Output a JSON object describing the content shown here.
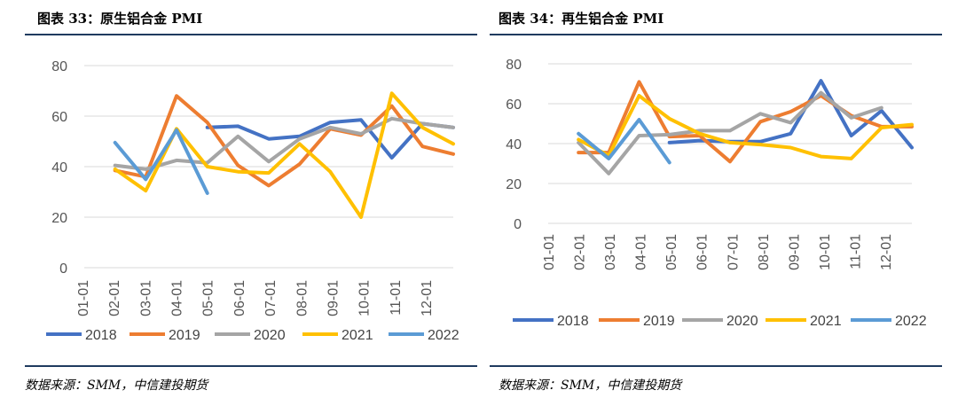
{
  "charts": [
    {
      "fig_title": "图表 33：原生铝合金 PMI",
      "source": "数据来源：SMM，中信建投期货"
    },
    {
      "fig_title": "图表 34：再生铝合金 PMI",
      "source": "数据来源：SMM，中信建投期货"
    }
  ],
  "chart_data": [
    {
      "type": "line",
      "title": "图表 33：原生铝合金 PMI",
      "xlabel": "",
      "ylabel": "",
      "categories": [
        "01-01",
        "02-01",
        "03-01",
        "04-01",
        "05-01",
        "06-01",
        "07-01",
        "08-01",
        "09-01",
        "10-01",
        "11-01",
        "12-01"
      ],
      "x_positions": [
        0,
        1,
        2,
        3,
        4,
        5,
        6,
        7,
        8,
        9,
        10,
        11,
        12
      ],
      "yticks": [
        0,
        20,
        40,
        60,
        80
      ],
      "ylim": [
        0,
        80
      ],
      "grid": true,
      "legend": "bottom",
      "series": [
        {
          "name": "2018",
          "color": "#4472c4",
          "points": [
            [
              4,
              55.5
            ],
            [
              5,
              56
            ],
            [
              6,
              51
            ],
            [
              7,
              52
            ],
            [
              8,
              57.5
            ],
            [
              9,
              58.5
            ],
            [
              10,
              43.5
            ],
            [
              11,
              57
            ],
            [
              12,
              55.5
            ]
          ]
        },
        {
          "name": "2019",
          "color": "#ed7d31",
          "points": [
            [
              1,
              38.5
            ],
            [
              2,
              36
            ],
            [
              3,
              68
            ],
            [
              4,
              57.5
            ],
            [
              5,
              40.5
            ],
            [
              6,
              32.5
            ],
            [
              7,
              41
            ],
            [
              8,
              55
            ],
            [
              9,
              52.5
            ],
            [
              10,
              64
            ],
            [
              11,
              48
            ],
            [
              12,
              45
            ]
          ]
        },
        {
          "name": "2020",
          "color": "#a5a5a5",
          "points": [
            [
              1,
              40.5
            ],
            [
              2,
              39
            ],
            [
              3,
              42.5
            ],
            [
              4,
              41.5
            ],
            [
              5,
              52
            ],
            [
              6,
              42
            ],
            [
              7,
              51
            ],
            [
              8,
              55.5
            ],
            [
              9,
              53
            ],
            [
              10,
              59
            ],
            [
              11,
              57
            ],
            [
              12,
              55.5
            ]
          ]
        },
        {
          "name": "2021",
          "color": "#ffc000",
          "points": [
            [
              1,
              39
            ],
            [
              2,
              30.5
            ],
            [
              3,
              55
            ],
            [
              4,
              40
            ],
            [
              5,
              38
            ],
            [
              6,
              37.5
            ],
            [
              7,
              49
            ],
            [
              8,
              38
            ],
            [
              9,
              20
            ],
            [
              10,
              69
            ],
            [
              11,
              55.5
            ],
            [
              12,
              49
            ]
          ]
        },
        {
          "name": "2022",
          "color": "#5b9bd5",
          "points": [
            [
              1,
              49.5
            ],
            [
              2,
              35
            ],
            [
              3,
              54.5
            ],
            [
              4,
              29.5
            ]
          ]
        }
      ]
    },
    {
      "type": "line",
      "title": "图表 34：再生铝合金 PMI",
      "xlabel": "",
      "ylabel": "",
      "categories": [
        "01-01",
        "02-01",
        "03-01",
        "04-01",
        "05-01",
        "06-01",
        "07-01",
        "08-01",
        "09-01",
        "10-01",
        "11-01",
        "12-01"
      ],
      "x_positions": [
        0,
        1,
        2,
        3,
        4,
        5,
        6,
        7,
        8,
        9,
        10,
        11,
        12
      ],
      "yticks": [
        0,
        20,
        40,
        60,
        80
      ],
      "ylim": [
        0,
        80
      ],
      "grid": true,
      "legend": "bottom",
      "series": [
        {
          "name": "2018",
          "color": "#4472c4",
          "points": [
            [
              4,
              40.5
            ],
            [
              5,
              41.5
            ],
            [
              6,
              41
            ],
            [
              7,
              41
            ],
            [
              8,
              45
            ],
            [
              9,
              71.5
            ],
            [
              10,
              44
            ],
            [
              11,
              56.5
            ],
            [
              12,
              38
            ]
          ]
        },
        {
          "name": "2019",
          "color": "#ed7d31",
          "points": [
            [
              1,
              35.5
            ],
            [
              2,
              35.5
            ],
            [
              3,
              71
            ],
            [
              4,
              43.5
            ],
            [
              5,
              44
            ],
            [
              6,
              31
            ],
            [
              7,
              51
            ],
            [
              8,
              56
            ],
            [
              9,
              64
            ],
            [
              10,
              54
            ],
            [
              11,
              48.5
            ],
            [
              12,
              48.5
            ]
          ]
        },
        {
          "name": "2020",
          "color": "#a5a5a5",
          "points": [
            [
              1,
              40.5
            ],
            [
              2,
              25
            ],
            [
              3,
              44
            ],
            [
              4,
              44.5
            ],
            [
              5,
              46.5
            ],
            [
              6,
              46.5
            ],
            [
              7,
              55
            ],
            [
              8,
              50.5
            ],
            [
              9,
              65.5
            ],
            [
              10,
              53
            ],
            [
              11,
              58
            ],
            [
              12,
              null
            ]
          ]
        },
        {
          "name": "2021",
          "color": "#ffc000",
          "points": [
            [
              1,
              42
            ],
            [
              2,
              34
            ],
            [
              3,
              64
            ],
            [
              4,
              52.5
            ],
            [
              5,
              45
            ],
            [
              6,
              40.5
            ],
            [
              7,
              39.5
            ],
            [
              8,
              38
            ],
            [
              9,
              33.5
            ],
            [
              10,
              32.5
            ],
            [
              11,
              48
            ],
            [
              12,
              49.5
            ]
          ]
        },
        {
          "name": "2022",
          "color": "#5b9bd5",
          "points": [
            [
              1,
              45
            ],
            [
              2,
              32.5
            ],
            [
              3,
              52
            ],
            [
              4,
              30.5
            ]
          ]
        }
      ]
    }
  ]
}
